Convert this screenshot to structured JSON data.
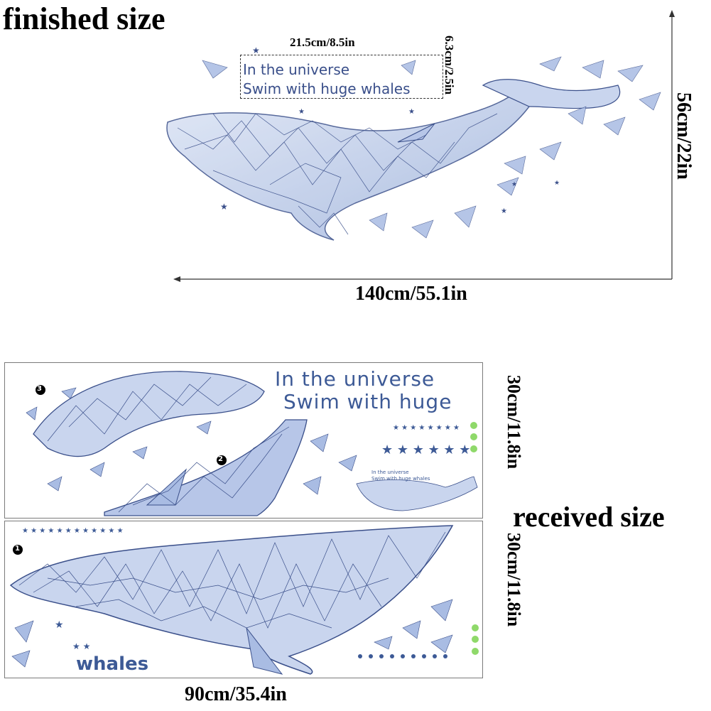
{
  "headings": {
    "finished": "finished size",
    "received": "received size"
  },
  "text_box": {
    "width_label": "21.5cm/8.5in",
    "height_label": "6.3cm/2.5in",
    "line1": "In the universe",
    "line2": "Swim with huge whales"
  },
  "finished_dims": {
    "width": "140cm/55.1in",
    "height": "56cm/22in"
  },
  "panels": {
    "top": {
      "height_label": "30cm/11.8in",
      "line1": "In the universe",
      "line2": "Swim with huge",
      "preview_line1": "In the universe",
      "preview_line2": "Swim with huge whales",
      "piece_numbers": [
        "3",
        "2"
      ]
    },
    "bottom": {
      "height_label": "30cm/11.8in",
      "word": "whales",
      "piece_number": "1"
    },
    "width_label": "90cm/35.4in"
  },
  "colors": {
    "whale_line": "#3a4f8a",
    "whale_fill": "#c9d5ee",
    "whale_fill_dark": "#98acd9",
    "text_blue": "#3d5a96",
    "green_dot": "#8fd96a"
  },
  "icons": [
    "star-icon",
    "triangle-shard-icon",
    "whale-illustration",
    "arrow-icon"
  ]
}
